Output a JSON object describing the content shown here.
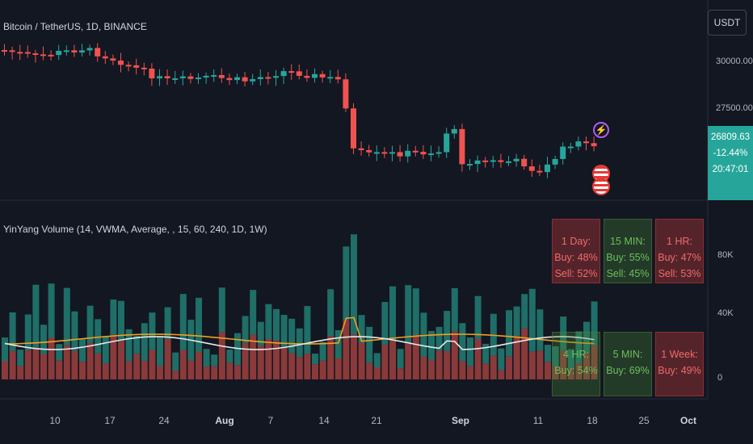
{
  "symbol_title": "Bitcoin / TetherUS, 1D, BINANCE",
  "indicator_title": "YinYang Volume (14, VWMA, Average, , 15, 60, 240, 1D, 1W)",
  "currency": "USDT",
  "price_axis": [
    "30000.00",
    "27500.00"
  ],
  "volume_axis": [
    "80K",
    "40K",
    "0"
  ],
  "price_badge": {
    "price": "26809.63",
    "change": "-12.44%",
    "countdown": "20:47:01"
  },
  "time_axis": [
    "10",
    "17",
    "24",
    "Aug",
    "7",
    "14",
    "21",
    "Sep",
    "11",
    "18",
    "25",
    "Oct"
  ],
  "tables": [
    {
      "title": "1 Day:",
      "buy": "Buy: 48%",
      "sell": "Sell: 52%",
      "tone": "red"
    },
    {
      "title": "15 MIN:",
      "buy": "Buy: 55%",
      "sell": "Sell: 45%",
      "tone": "green"
    },
    {
      "title": "1 HR:",
      "buy": "Buy: 47%",
      "sell": "Sell: 53%",
      "tone": "red"
    },
    {
      "title": "4 HR:",
      "buy": "Buy: 54%",
      "sell": "",
      "tone": "green"
    },
    {
      "title": "5 MIN:",
      "buy": "Buy: 69%",
      "sell": "",
      "tone": "green"
    },
    {
      "title": "1 Week:",
      "buy": "Buy: 49%",
      "sell": "",
      "tone": "red"
    }
  ],
  "colors": {
    "up": "#26a69a",
    "down": "#ef5350",
    "vol_up": "#1f6e67",
    "vol_down": "#8a3a3a",
    "line_white": "#e8e8e8",
    "line_orange": "#f0a020"
  },
  "icons": [
    "lightning-icon",
    "us-flag-icon"
  ]
}
